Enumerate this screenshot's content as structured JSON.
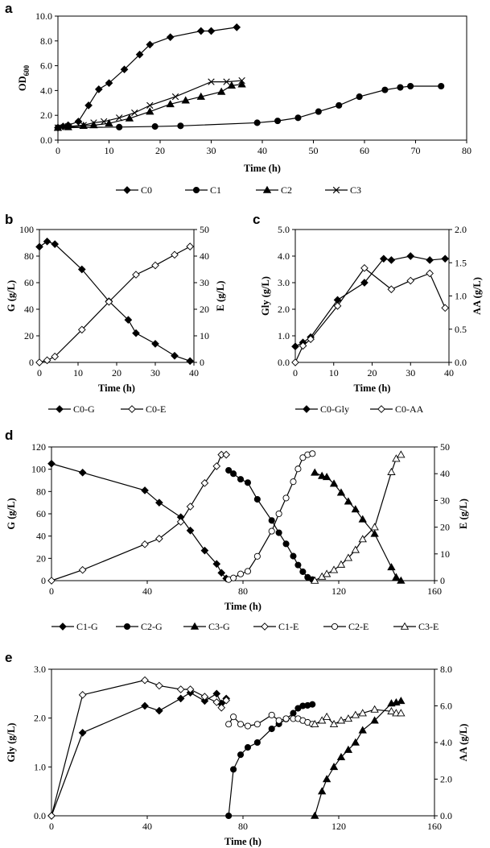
{
  "chart_data": [
    {
      "type": "line",
      "panel_label": "a",
      "xlabel": "Time (h)",
      "ylabel": "OD",
      "ylabel_sub": "600",
      "xlim": [
        0,
        80
      ],
      "ylim": [
        0,
        10
      ],
      "xticks": [
        "0",
        "10",
        "20",
        "30",
        "40",
        "50",
        "60",
        "70",
        "80"
      ],
      "yticks": [
        "0.0",
        "2.0",
        "4.0",
        "6.0",
        "8.0",
        "10.0"
      ],
      "series": [
        {
          "name": "C0",
          "marker": "diamond",
          "x": [
            0,
            1,
            2,
            4,
            6,
            8,
            10,
            13,
            16,
            18,
            22,
            28,
            30,
            35
          ],
          "y": [
            1.0,
            1.1,
            1.2,
            1.5,
            2.8,
            4.1,
            4.6,
            5.7,
            6.9,
            7.7,
            8.3,
            8.8,
            8.8,
            9.1
          ]
        },
        {
          "name": "C1",
          "marker": "circle",
          "x": [
            0,
            12,
            19,
            24,
            39,
            43,
            47,
            51,
            55,
            59,
            64,
            67,
            69,
            75
          ],
          "y": [
            1.0,
            1.05,
            1.1,
            1.15,
            1.4,
            1.55,
            1.8,
            2.3,
            2.8,
            3.5,
            4.05,
            4.25,
            4.35,
            4.35
          ]
        },
        {
          "name": "C2",
          "marker": "triangle",
          "x": [
            0,
            2,
            5,
            7,
            10,
            14,
            18,
            22,
            25,
            28,
            32,
            34,
            36
          ],
          "y": [
            1.0,
            1.05,
            1.15,
            1.2,
            1.35,
            1.75,
            2.3,
            2.9,
            3.2,
            3.5,
            3.9,
            4.4,
            4.5
          ]
        },
        {
          "name": "C3",
          "marker": "x",
          "x": [
            0,
            2,
            5,
            7,
            9,
            12,
            15,
            18,
            23,
            30,
            33,
            36
          ],
          "y": [
            1.0,
            1.1,
            1.2,
            1.4,
            1.5,
            1.8,
            2.2,
            2.8,
            3.5,
            4.7,
            4.7,
            4.8
          ]
        }
      ],
      "legend": [
        "C0",
        "C1",
        "C2",
        "C3"
      ]
    },
    {
      "type": "line",
      "panel_label": "b",
      "xlabel": "Time (h)",
      "ylabel": "G (g/L)",
      "ylabel_right": "E (g/L)",
      "xlim": [
        0,
        40
      ],
      "ylim": [
        0,
        100
      ],
      "ylim_right": [
        0,
        50
      ],
      "xticks": [
        "0",
        "10",
        "20",
        "30",
        "40"
      ],
      "yticks": [
        "0",
        "20",
        "40",
        "60",
        "80",
        "100"
      ],
      "yticks_right": [
        "0",
        "10",
        "20",
        "30",
        "40",
        "50"
      ],
      "series": [
        {
          "name": "C0-G",
          "axis": "left",
          "marker": "diamond",
          "x": [
            0,
            2,
            4,
            11,
            18,
            23,
            25,
            30,
            35,
            39
          ],
          "y": [
            87,
            91,
            89,
            70,
            46,
            32,
            22,
            14,
            5,
            1
          ]
        },
        {
          "name": "C0-E",
          "axis": "right",
          "marker": "diamond-open",
          "x": [
            0,
            2,
            4,
            11,
            18,
            25,
            30,
            35,
            39
          ],
          "y": [
            0,
            0.8,
            2.2,
            12.3,
            22.8,
            33.0,
            36.5,
            40.5,
            43.6
          ]
        }
      ],
      "legend": [
        "C0-G",
        "C0-E"
      ]
    },
    {
      "type": "line",
      "panel_label": "c",
      "xlabel": "Time (h)",
      "ylabel": "Gly (g/L)",
      "ylabel_right": "AA (g/L)",
      "xlim": [
        0,
        40
      ],
      "ylim": [
        0,
        5
      ],
      "ylim_right": [
        0,
        2
      ],
      "xticks": [
        "0",
        "10",
        "20",
        "30",
        "40"
      ],
      "yticks": [
        "0.0",
        "1.0",
        "2.0",
        "3.0",
        "4.0",
        "5.0"
      ],
      "yticks_right": [
        "0.0",
        "0.5",
        "1.0",
        "1.5",
        "2.0"
      ],
      "series": [
        {
          "name": "C0-Gly",
          "axis": "left",
          "marker": "diamond",
          "x": [
            0,
            2,
            4,
            11,
            18,
            23,
            25,
            30,
            35,
            39
          ],
          "y": [
            0.6,
            0.75,
            0.95,
            2.35,
            3.0,
            3.9,
            3.85,
            4.0,
            3.85,
            3.9
          ]
        },
        {
          "name": "C0-AA",
          "axis": "right",
          "marker": "diamond-open",
          "x": [
            0,
            2,
            4,
            11,
            18,
            25,
            30,
            35,
            39
          ],
          "y": [
            0.0,
            0.25,
            0.35,
            0.85,
            1.42,
            1.1,
            1.23,
            1.34,
            0.82
          ]
        }
      ],
      "legend": [
        "C0-Gly",
        "C0-AA"
      ]
    },
    {
      "type": "line",
      "panel_label": "d",
      "xlabel": "Time (h)",
      "ylabel": "G (g/L)",
      "ylabel_right": "E (g/L)",
      "xlim": [
        0,
        160
      ],
      "ylim": [
        0,
        120
      ],
      "ylim_right": [
        0,
        50
      ],
      "xticks": [
        "0",
        "40",
        "80",
        "120",
        "160"
      ],
      "yticks": [
        "0",
        "20",
        "40",
        "60",
        "80",
        "100",
        "120"
      ],
      "yticks_right": [
        "0",
        "10",
        "20",
        "30",
        "40",
        "50"
      ],
      "series": [
        {
          "name": "C1-G",
          "axis": "left",
          "marker": "diamond",
          "x": [
            0,
            13,
            39,
            45,
            54,
            58,
            64,
            69,
            71,
            73
          ],
          "y": [
            105,
            97,
            81,
            70,
            57,
            45,
            27,
            15,
            7,
            2
          ]
        },
        {
          "name": "C2-G",
          "axis": "left",
          "marker": "circle",
          "x": [
            74,
            76,
            79,
            82,
            86,
            92,
            95,
            98,
            101,
            103,
            105,
            107,
            109
          ],
          "y": [
            99,
            96,
            91,
            88,
            73,
            54,
            43,
            33,
            22,
            14,
            8,
            3,
            1
          ]
        },
        {
          "name": "C3-G",
          "axis": "left",
          "marker": "triangle",
          "x": [
            110,
            113,
            115,
            118,
            121,
            124,
            127,
            130,
            135,
            142,
            144,
            146
          ],
          "y": [
            97,
            94,
            93,
            87,
            79,
            71,
            64,
            55,
            42,
            12,
            3,
            0
          ]
        },
        {
          "name": "C1-E",
          "axis": "right",
          "marker": "diamond-open",
          "x": [
            0,
            13,
            39,
            45,
            54,
            58,
            64,
            69,
            71,
            73
          ],
          "y": [
            0,
            4.0,
            13.6,
            15.7,
            22.0,
            27.7,
            36.5,
            42.8,
            47.1,
            47.1
          ]
        },
        {
          "name": "C2-E",
          "axis": "right",
          "marker": "circle-open",
          "x": [
            74,
            76,
            79,
            82,
            86,
            92,
            95,
            98,
            101,
            103,
            105,
            107,
            109
          ],
          "y": [
            0.4,
            1.0,
            2.5,
            3.5,
            9.1,
            18.5,
            25.0,
            30.9,
            37.0,
            41.8,
            46.0,
            47.1,
            47.5
          ]
        },
        {
          "name": "C3-E",
          "axis": "right",
          "marker": "triangle-open",
          "x": [
            110,
            113,
            115,
            118,
            121,
            124,
            127,
            130,
            135,
            142,
            144,
            146
          ],
          "y": [
            0,
            1.5,
            2.5,
            4.0,
            6.0,
            8.5,
            11.5,
            15.5,
            20.0,
            40.6,
            45.6,
            47.1
          ]
        }
      ],
      "legend": [
        "C1-G",
        "C2-G",
        "C3-G",
        "C1-E",
        "C2-E",
        "C3-E"
      ]
    },
    {
      "type": "line",
      "panel_label": "e",
      "xlabel": "Time (h)",
      "ylabel": "Gly (g/L)",
      "ylabel_right": "AA (g/L)",
      "xlim": [
        0,
        160
      ],
      "ylim": [
        0,
        3
      ],
      "ylim_right": [
        0,
        8
      ],
      "xticks": [
        "0",
        "40",
        "80",
        "120",
        "160"
      ],
      "yticks": [
        "0.0",
        "1.0",
        "2.0",
        "3.0"
      ],
      "yticks_right": [
        "0.0",
        "2.0",
        "4.0",
        "6.0",
        "8.0"
      ],
      "series": [
        {
          "name": "C1-Gly",
          "axis": "left",
          "marker": "diamond",
          "x": [
            0,
            13,
            39,
            45,
            54,
            58,
            64,
            69,
            71,
            73
          ],
          "y": [
            0,
            1.7,
            2.25,
            2.15,
            2.4,
            2.52,
            2.35,
            2.5,
            2.3,
            2.4
          ]
        },
        {
          "name": "C2-Gly",
          "axis": "left",
          "marker": "circle",
          "x": [
            74,
            76,
            79,
            82,
            86,
            92,
            95,
            98,
            101,
            103,
            105,
            107,
            109
          ],
          "y": [
            0,
            0.95,
            1.25,
            1.4,
            1.5,
            1.78,
            1.88,
            1.98,
            2.1,
            2.2,
            2.25,
            2.26,
            2.28
          ]
        },
        {
          "name": "C3-Gly",
          "axis": "left",
          "marker": "triangle",
          "x": [
            110,
            113,
            115,
            118,
            121,
            124,
            127,
            130,
            135,
            142,
            144,
            146
          ],
          "y": [
            0,
            0.5,
            0.75,
            1.0,
            1.2,
            1.35,
            1.5,
            1.75,
            1.95,
            2.3,
            2.32,
            2.35
          ]
        },
        {
          "name": "C1-AA",
          "axis": "right",
          "marker": "diamond-open",
          "x": [
            0,
            13,
            39,
            45,
            54,
            58,
            64,
            69,
            71,
            73
          ],
          "y": [
            0,
            6.6,
            7.4,
            7.1,
            6.9,
            6.9,
            6.5,
            6.2,
            5.9,
            6.3
          ]
        },
        {
          "name": "C2-AA",
          "axis": "right",
          "marker": "circle-open",
          "x": [
            74,
            76,
            79,
            82,
            86,
            92,
            95,
            98,
            101,
            103,
            105,
            107,
            109
          ],
          "y": [
            5.0,
            5.4,
            5.0,
            4.9,
            5.0,
            5.5,
            5.2,
            5.3,
            5.3,
            5.3,
            5.2,
            5.1,
            5.0
          ]
        },
        {
          "name": "C3-AA",
          "axis": "right",
          "marker": "triangle-open",
          "x": [
            110,
            113,
            115,
            118,
            121,
            124,
            127,
            130,
            135,
            142,
            144,
            146
          ],
          "y": [
            5.0,
            5.2,
            5.4,
            5.0,
            5.2,
            5.3,
            5.5,
            5.6,
            5.8,
            5.7,
            5.6,
            5.6
          ]
        }
      ],
      "legend": [
        "C1-Gly",
        "C2-Gly",
        "C3-Gly",
        "C1-AA",
        "C2-AA",
        "C3-AA"
      ]
    }
  ]
}
